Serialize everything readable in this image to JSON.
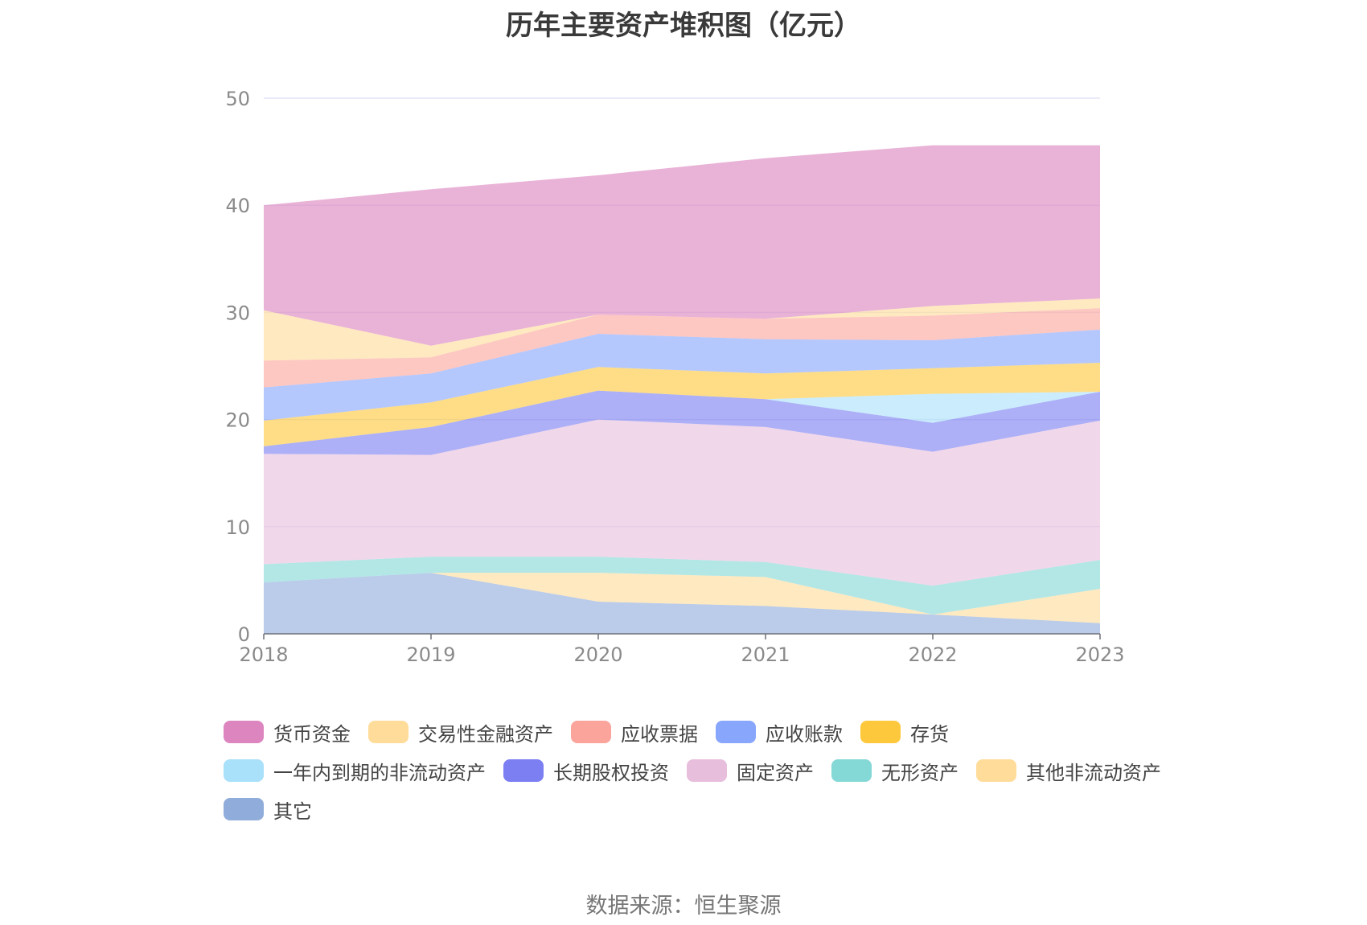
{
  "chart_data": {
    "type": "area",
    "title": "历年主要资产堆积图（亿元）",
    "x": [
      "2018",
      "2019",
      "2020",
      "2021",
      "2022",
      "2023"
    ],
    "ylim": [
      0,
      50
    ],
    "yticks": [
      0,
      10,
      20,
      30,
      40,
      50
    ],
    "stacked": true,
    "grid": true,
    "legend_position": "bottom",
    "series": [
      {
        "name": "其它",
        "color": "#8facdb",
        "values": [
          4.8,
          5.7,
          3.0,
          2.6,
          1.8,
          1.0
        ]
      },
      {
        "name": "其他非流动资产",
        "color": "#ffdc9a",
        "values": [
          0.0,
          0.0,
          2.7,
          2.7,
          0.0,
          3.2
        ]
      },
      {
        "name": "无形资产",
        "color": "#84d8d6",
        "values": [
          1.7,
          1.5,
          1.5,
          1.4,
          2.7,
          2.7
        ]
      },
      {
        "name": "固定资产",
        "color": "#e8bedd",
        "values": [
          10.3,
          9.5,
          12.8,
          12.6,
          12.5,
          13.0
        ]
      },
      {
        "name": "长期股权投资",
        "color": "#7b7ff2",
        "values": [
          0.7,
          2.6,
          2.7,
          2.6,
          2.7,
          2.7
        ]
      },
      {
        "name": "一年内到期的非流动资产",
        "color": "#a9e0fa",
        "values": [
          0.0,
          0.0,
          0.0,
          0.0,
          2.7,
          0.0
        ]
      },
      {
        "name": "存货",
        "color": "#fdc83c",
        "values": [
          2.4,
          2.3,
          2.2,
          2.4,
          2.4,
          2.7
        ]
      },
      {
        "name": "应收账款",
        "color": "#88a6fb",
        "values": [
          3.1,
          2.7,
          3.1,
          3.2,
          2.6,
          3.1
        ]
      },
      {
        "name": "应收票据",
        "color": "#fba49c",
        "values": [
          2.5,
          1.5,
          1.8,
          1.9,
          2.3,
          2.0
        ]
      },
      {
        "name": "交易性金融资产",
        "color": "#ffdc9a",
        "values": [
          4.7,
          1.1,
          0.0,
          0.0,
          0.9,
          0.9
        ]
      },
      {
        "name": "货币资金",
        "color": "#dc85bf",
        "values": [
          9.8,
          14.6,
          13.0,
          15.0,
          15.0,
          14.3
        ]
      }
    ],
    "legend_order": [
      "货币资金",
      "交易性金融资产",
      "应收票据",
      "应收账款",
      "存货",
      "一年内到期的非流动资产",
      "长期股权投资",
      "固定资产",
      "无形资产",
      "其他非流动资产",
      "其它"
    ],
    "source": "数据来源：恒生聚源"
  }
}
